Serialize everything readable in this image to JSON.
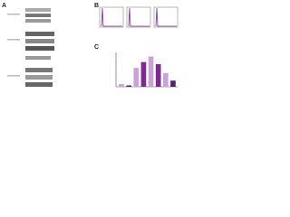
{
  "panel_labels": [
    "A",
    "B",
    "C"
  ],
  "chart_data": {
    "type": "bar",
    "values": [
      8,
      4,
      55,
      72,
      88,
      66,
      40,
      18
    ],
    "colors": [
      "#c9a3d6",
      "#5a1f6e",
      "#c9a3d6",
      "#7b2d8e",
      "#c9a3d6",
      "#7b2d8e",
      "#c9a3d6",
      "#5a1f6e"
    ],
    "ylim": [
      0,
      100
    ]
  }
}
